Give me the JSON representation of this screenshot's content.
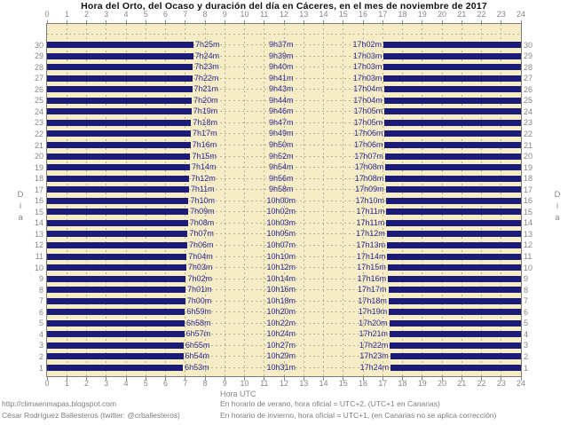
{
  "chart_data": {
    "type": "bar",
    "orientation": "horizontal-gantt",
    "title": "Hora del Orto, del Ocaso y duración del día en Cáceres, en el mes de noviembre de 2017",
    "xlabel": "Hora UTC",
    "ylabel": "Día",
    "xlim": [
      0,
      24
    ],
    "x_ticks": [
      "0",
      "1",
      "2",
      "3",
      "4",
      "5",
      "6",
      "7",
      "8",
      "9",
      "10",
      "11",
      "12",
      "13",
      "14",
      "15",
      "16",
      "17",
      "18",
      "19",
      "20",
      "21",
      "22",
      "23",
      "24"
    ],
    "grid": "dashed",
    "legend": "none",
    "bars_meaning": "navy bar from 0 to sunrise (orto) and from sunset (ocaso) to 24; labels show sunrise time, day length (duración) and sunset time",
    "rows": [
      {
        "day": 30,
        "orto": "7h25m",
        "duracion": "9h37m",
        "ocaso": "17h02m"
      },
      {
        "day": 29,
        "orto": "7h24m",
        "duracion": "9h39m",
        "ocaso": "17h03m"
      },
      {
        "day": 28,
        "orto": "7h23m",
        "duracion": "9h40m",
        "ocaso": "17h03m"
      },
      {
        "day": 27,
        "orto": "7h22m",
        "duracion": "9h41m",
        "ocaso": "17h03m"
      },
      {
        "day": 26,
        "orto": "7h21m",
        "duracion": "9h43m",
        "ocaso": "17h04m"
      },
      {
        "day": 25,
        "orto": "7h20m",
        "duracion": "9h44m",
        "ocaso": "17h04m"
      },
      {
        "day": 24,
        "orto": "7h19m",
        "duracion": "9h46m",
        "ocaso": "17h05m"
      },
      {
        "day": 23,
        "orto": "7h18m",
        "duracion": "9h47m",
        "ocaso": "17h05m"
      },
      {
        "day": 22,
        "orto": "7h17m",
        "duracion": "9h49m",
        "ocaso": "17h06m"
      },
      {
        "day": 21,
        "orto": "7h16m",
        "duracion": "9h50m",
        "ocaso": "17h06m"
      },
      {
        "day": 20,
        "orto": "7h15m",
        "duracion": "9h52m",
        "ocaso": "17h07m"
      },
      {
        "day": 19,
        "orto": "7h14m",
        "duracion": "9h54m",
        "ocaso": "17h08m"
      },
      {
        "day": 18,
        "orto": "7h12m",
        "duracion": "9h56m",
        "ocaso": "17h08m"
      },
      {
        "day": 17,
        "orto": "7h11m",
        "duracion": "9h58m",
        "ocaso": "17h09m"
      },
      {
        "day": 16,
        "orto": "7h10m",
        "duracion": "10h00m",
        "ocaso": "17h10m"
      },
      {
        "day": 15,
        "orto": "7h09m",
        "duracion": "10h02m",
        "ocaso": "17h11m"
      },
      {
        "day": 14,
        "orto": "7h08m",
        "duracion": "10h03m",
        "ocaso": "17h11m"
      },
      {
        "day": 13,
        "orto": "7h07m",
        "duracion": "10h05m",
        "ocaso": "17h12m"
      },
      {
        "day": 12,
        "orto": "7h06m",
        "duracion": "10h07m",
        "ocaso": "17h13m"
      },
      {
        "day": 11,
        "orto": "7h04m",
        "duracion": "10h10m",
        "ocaso": "17h14m"
      },
      {
        "day": 10,
        "orto": "7h03m",
        "duracion": "10h12m",
        "ocaso": "17h15m"
      },
      {
        "day": 9,
        "orto": "7h02m",
        "duracion": "10h14m",
        "ocaso": "17h16m"
      },
      {
        "day": 8,
        "orto": "7h01m",
        "duracion": "10h16m",
        "ocaso": "17h17m"
      },
      {
        "day": 7,
        "orto": "7h00m",
        "duracion": "10h18m",
        "ocaso": "17h18m"
      },
      {
        "day": 6,
        "orto": "6h59m",
        "duracion": "10h20m",
        "ocaso": "17h19m"
      },
      {
        "day": 5,
        "orto": "6h58m",
        "duracion": "10h22m",
        "ocaso": "17h20m"
      },
      {
        "day": 4,
        "orto": "6h57m",
        "duracion": "10h24m",
        "ocaso": "17h21m"
      },
      {
        "day": 3,
        "orto": "6h55m",
        "duracion": "10h27m",
        "ocaso": "17h22m"
      },
      {
        "day": 2,
        "orto": "6h54m",
        "duracion": "10h29m",
        "ocaso": "17h23m"
      },
      {
        "day": 1,
        "orto": "6h53m",
        "duracion": "10h31m",
        "ocaso": "17h24m"
      }
    ]
  },
  "footer": {
    "left1": "http://climaenmapas.blogspot.com",
    "left2": "César Rodríguez Ballesteros (twitter: @crballesteros)",
    "right1": "En horario de verano, hora oficial = UTC+2, (UTC+1 en Canarias)",
    "right2": "En horario de invierno, hora oficial = UTC+1, (en Canarias no se aplica corrección)"
  },
  "colors": {
    "bar": "#1c1c78",
    "bar_label": "#2b2b94",
    "plot_background": "#f6ecc6",
    "gridline": "#bab293",
    "axis_text": "#878787",
    "footer_text": "#7d7d7d",
    "title_text": "#111111",
    "plot_border": "#7a7a7a"
  }
}
